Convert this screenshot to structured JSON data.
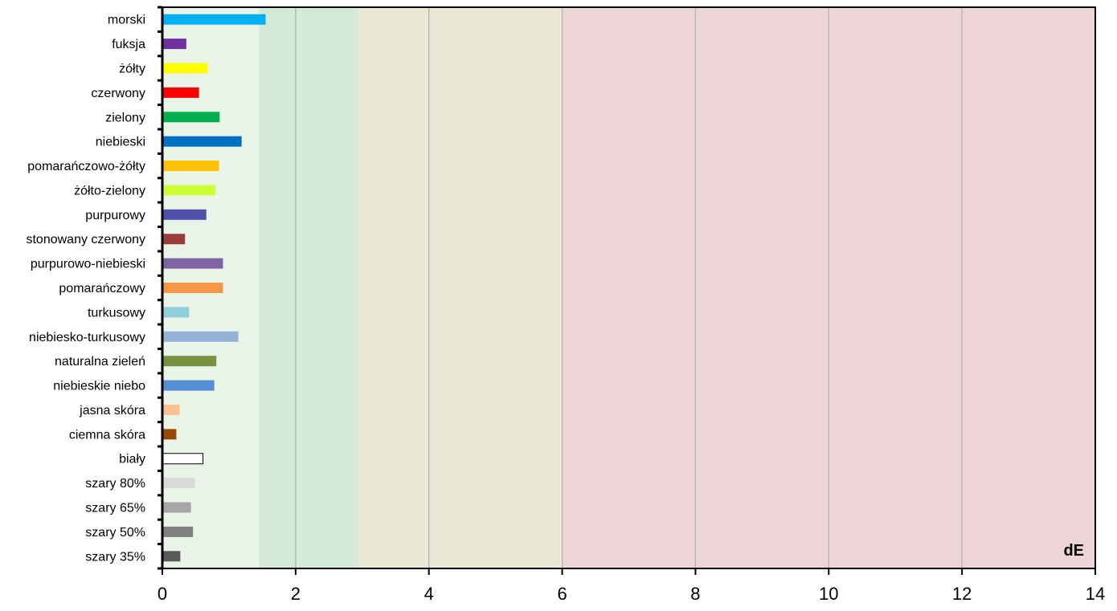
{
  "chart_data": {
    "type": "bar",
    "orientation": "horizontal",
    "xlabel": "dE",
    "xlim": [
      0,
      14
    ],
    "xticks": [
      0,
      2,
      4,
      6,
      8,
      10,
      12,
      14
    ],
    "grid": "vertical",
    "bands": [
      {
        "from": 0,
        "to": 1.45,
        "color": "#e9f3e7"
      },
      {
        "from": 1.45,
        "to": 2.95,
        "color": "#d3ead6"
      },
      {
        "from": 2.95,
        "to": 6,
        "color": "#ebe9d6"
      },
      {
        "from": 6,
        "to": 14,
        "color": "#edd5d7"
      }
    ],
    "categories": [
      "morski",
      "fuksja",
      "żółty",
      "czerwony",
      "zielony",
      "niebieski",
      "pomarańczowo-żółty",
      "żółto-zielony",
      "purpurowy",
      "stonowany czerwony",
      "purpurowo-niebieski",
      "pomarańczowy",
      "turkusowy",
      "niebiesko-turkusowy",
      "naturalna zieleń",
      "niebieskie niebo",
      "jasna skóra",
      "ciemna skóra",
      "biały",
      "szary 80%",
      "szary 65%",
      "szary 50%",
      "szary 35%"
    ],
    "values": [
      1.55,
      0.36,
      0.68,
      0.55,
      0.86,
      1.19,
      0.85,
      0.8,
      0.66,
      0.34,
      0.91,
      0.91,
      0.4,
      1.14,
      0.81,
      0.78,
      0.26,
      0.21,
      0.61,
      0.49,
      0.43,
      0.46,
      0.27
    ],
    "colors": [
      "#00b0f0",
      "#7030a0",
      "#ffff00",
      "#ff0000",
      "#00b050",
      "#0070c0",
      "#ffc000",
      "#ccff33",
      "#5050aa",
      "#9b3b3b",
      "#8064a2",
      "#f79646",
      "#92cddc",
      "#95b3d7",
      "#76923c",
      "#558ed5",
      "#fac090",
      "#974806",
      "#ffffff",
      "#d9d9d9",
      "#a6a6a6",
      "#808080",
      "#595959"
    ]
  }
}
